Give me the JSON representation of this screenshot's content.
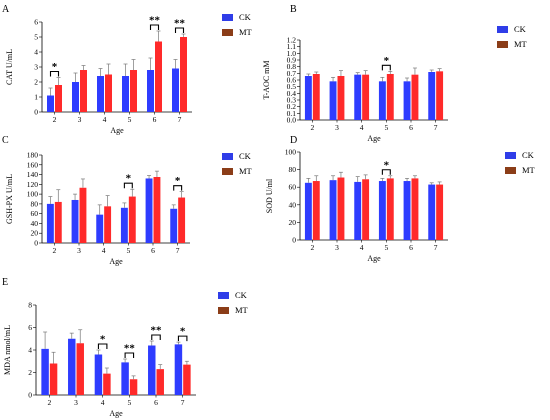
{
  "colors": {
    "ck": "#2f3de8",
    "mt": "#8b3d18",
    "bar_ck": "#2e3cff",
    "bar_mt": "#ff2a2a"
  },
  "legend": {
    "ck": "CK",
    "mt": "MT"
  },
  "chart_data": [
    {
      "panel": "A",
      "type": "bar",
      "xlabel": "Age",
      "ylabel": "CAT U/mL",
      "categories": [
        "2",
        "3",
        "4",
        "5",
        "6",
        "7"
      ],
      "ylim": [
        0,
        6
      ],
      "yticks": [
        "0",
        "1",
        "2",
        "3",
        "4",
        "5",
        "6"
      ],
      "series": [
        {
          "name": "CK",
          "values": [
            1.1,
            2.0,
            2.4,
            2.4,
            2.8,
            2.9
          ],
          "errors": [
            0.5,
            0.6,
            0.5,
            0.8,
            0.8,
            0.6
          ]
        },
        {
          "name": "MT",
          "values": [
            1.8,
            2.8,
            2.5,
            2.8,
            4.7,
            5.0
          ],
          "errors": [
            0.5,
            0.3,
            0.7,
            0.7,
            0.7,
            0.2
          ]
        }
      ],
      "significance": [
        {
          "category": "2",
          "label": "*"
        },
        {
          "category": "6",
          "label": "**"
        },
        {
          "category": "7",
          "label": "**"
        }
      ]
    },
    {
      "panel": "B",
      "type": "bar",
      "xlabel": "Age",
      "ylabel": "T-AOC mM",
      "categories": [
        "2",
        "3",
        "4",
        "5",
        "6",
        "7"
      ],
      "ylim": [
        0,
        1.2
      ],
      "yticks": [
        "0.0",
        "0.1",
        "0.2",
        "0.3",
        "0.4",
        "0.5",
        "0.6",
        "0.7",
        "0.8",
        "0.9",
        "1.0",
        "1.1",
        "1.2"
      ],
      "series": [
        {
          "name": "CK",
          "values": [
            0.66,
            0.58,
            0.68,
            0.58,
            0.58,
            0.72
          ],
          "errors": [
            0.03,
            0.06,
            0.03,
            0.06,
            0.05,
            0.03
          ]
        },
        {
          "name": "MT",
          "values": [
            0.69,
            0.66,
            0.68,
            0.69,
            0.68,
            0.73
          ],
          "errors": [
            0.03,
            0.08,
            0.06,
            0.04,
            0.1,
            0.04
          ]
        }
      ],
      "significance": [
        {
          "category": "5",
          "label": "*"
        }
      ]
    },
    {
      "panel": "C",
      "type": "bar",
      "xlabel": "Age",
      "ylabel": "GSH-PX U/mL",
      "categories": [
        "2",
        "3",
        "4",
        "5",
        "6",
        "7"
      ],
      "ylim": [
        0,
        180
      ],
      "yticks": [
        "0",
        "20",
        "40",
        "60",
        "80",
        "100",
        "120",
        "140",
        "160",
        "180"
      ],
      "series": [
        {
          "name": "CK",
          "values": [
            80,
            88,
            58,
            72,
            132,
            70
          ],
          "errors": [
            15,
            12,
            20,
            10,
            6,
            8
          ]
        },
        {
          "name": "MT",
          "values": [
            84,
            113,
            75,
            95,
            135,
            93
          ],
          "errors": [
            25,
            18,
            22,
            15,
            12,
            12
          ]
        }
      ],
      "significance": [
        {
          "category": "5",
          "label": "*"
        },
        {
          "category": "7",
          "label": "*"
        }
      ]
    },
    {
      "panel": "D",
      "type": "bar",
      "xlabel": "Age",
      "ylabel": "SOD U/ml",
      "categories": [
        "2",
        "3",
        "4",
        "5",
        "6",
        "7"
      ],
      "ylim": [
        0,
        100
      ],
      "yticks": [
        "0",
        "20",
        "40",
        "60",
        "80",
        "100"
      ],
      "series": [
        {
          "name": "CK",
          "values": [
            65,
            68,
            66,
            67,
            67,
            63
          ],
          "errors": [
            5,
            5,
            6,
            3,
            3,
            2
          ]
        },
        {
          "name": "MT",
          "values": [
            67,
            71,
            69,
            70,
            70,
            63
          ],
          "errors": [
            6,
            6,
            5,
            3,
            3,
            3
          ]
        }
      ],
      "significance": [
        {
          "category": "5",
          "label": "*"
        }
      ]
    },
    {
      "panel": "E",
      "type": "bar",
      "xlabel": "Age",
      "ylabel": "MDA nmol/mL",
      "categories": [
        "2",
        "3",
        "4",
        "5",
        "6",
        "7"
      ],
      "ylim": [
        0,
        8
      ],
      "yticks": [
        "0",
        "2",
        "4",
        "6",
        "8"
      ],
      "series": [
        {
          "name": "CK",
          "values": [
            4.1,
            5.0,
            3.6,
            2.9,
            4.4,
            4.5
          ],
          "errors": [
            1.5,
            0.5,
            0.4,
            0.3,
            0.4,
            0.2
          ]
        },
        {
          "name": "MT",
          "values": [
            2.8,
            4.6,
            1.9,
            1.4,
            2.3,
            2.7
          ],
          "errors": [
            1.0,
            1.2,
            0.5,
            0.3,
            0.4,
            0.3
          ]
        }
      ],
      "significance": [
        {
          "category": "4",
          "label": "*"
        },
        {
          "category": "5",
          "label": "**"
        },
        {
          "category": "6",
          "label": "**"
        },
        {
          "category": "7",
          "label": "*"
        }
      ]
    }
  ]
}
